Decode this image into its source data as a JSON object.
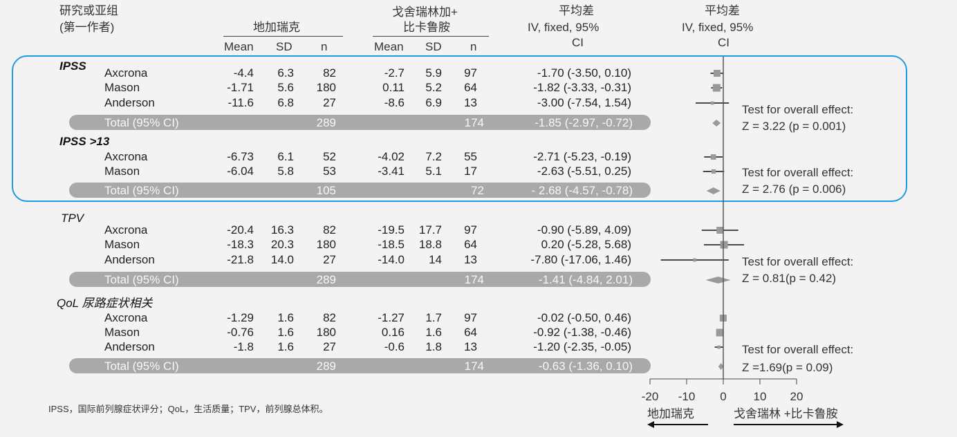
{
  "headers": {
    "study_line1": "研究或亚组",
    "study_line2": "(第一作者)",
    "group1": "地加瑞克",
    "group2_line1": "戈舍瑞林加+",
    "group2_line2": "比卡鲁胺",
    "md_line1": "平均差",
    "md_line2": "IV, fixed, 95%",
    "md_line3": "CI",
    "plot_line1": "平均差",
    "plot_line2": "IV, fixed, 95%",
    "plot_line3": "CI",
    "mean": "Mean",
    "sd": "SD",
    "n": "n"
  },
  "chart_data": {
    "type": "forest",
    "xlim": [
      -20,
      20
    ],
    "xticks": [
      "-20",
      "-10",
      "0",
      "10",
      "20"
    ],
    "x_left_label": "地加瑞克",
    "x_right_label": "戈舍瑞林 +比卡鲁胺",
    "subgroups": [
      {
        "name": "IPSS",
        "studies": [
          {
            "study": "Axcrona",
            "m1": "-4.4",
            "sd1": "6.3",
            "n1": "82",
            "m2": "-2.7",
            "sd2": "5.9",
            "n2": "97",
            "ci_text": "-1.70 (-3.50, 0.10)",
            "md": -1.7,
            "lo": -3.5,
            "hi": 0.1
          },
          {
            "study": "Mason",
            "m1": "-1.71",
            "sd1": "5.6",
            "n1": "180",
            "m2": "0.11",
            "sd2": "5.2",
            "n2": "64",
            "ci_text": "-1.82 (-3.33, -0.31)",
            "md": -1.82,
            "lo": -3.33,
            "hi": -0.31
          },
          {
            "study": "Anderson",
            "m1": "-11.6",
            "sd1": "6.8",
            "n1": "27",
            "m2": "-8.6",
            "sd2": "6.9",
            "n2": "13",
            "ci_text": "-3.00 (-7.54, 1.54)",
            "md": -3.0,
            "lo": -7.54,
            "hi": 1.54
          }
        ],
        "total": {
          "label": "Total (95% CI)",
          "n1": "289",
          "n2": "174",
          "ci_text": "-1.85 (-2.97, -0.72)",
          "md": -1.85,
          "lo": -2.97,
          "hi": -0.72
        },
        "test_line1": "Test for overall effect:",
        "test_line2": "Z = 3.22 (p = 0.001)"
      },
      {
        "name": "IPSS >13",
        "studies": [
          {
            "study": "Axcrona",
            "m1": "-6.73",
            "sd1": "6.1",
            "n1": "52",
            "m2": "-4.02",
            "sd2": "7.2",
            "n2": "55",
            "ci_text": "-2.71 (-5.23, -0.19)",
            "md": -2.71,
            "lo": -5.23,
            "hi": -0.19
          },
          {
            "study": "Mason",
            "m1": "-6.04",
            "sd1": "5.8",
            "n1": "53",
            "m2": "-3.41",
            "sd2": "5.1",
            "n2": "17",
            "ci_text": "-2.63 (-5.51, 0.25)",
            "md": -2.63,
            "lo": -5.51,
            "hi": 0.25
          }
        ],
        "total": {
          "label": "Total (95% CI)",
          "n1": "105",
          "n2": "72",
          "ci_text": "- 2.68 (-4.57, -0.78)",
          "md": -2.68,
          "lo": -4.57,
          "hi": -0.78
        },
        "test_line1": "Test for overall effect:",
        "test_line2": "Z = 2.76 (p = 0.006)"
      },
      {
        "name": "TPV",
        "studies": [
          {
            "study": "Axcrona",
            "m1": "-20.4",
            "sd1": "16.3",
            "n1": "82",
            "m2": "-19.5",
            "sd2": "17.7",
            "n2": "97",
            "ci_text": "-0.90 (-5.89, 4.09)",
            "md": -0.9,
            "lo": -5.89,
            "hi": 4.09
          },
          {
            "study": "Mason",
            "m1": "-18.3",
            "sd1": "20.3",
            "n1": "180",
            "m2": "-18.5",
            "sd2": "18.8",
            "n2": "64",
            "ci_text": "0.20 (-5.28, 5.68)",
            "md": 0.2,
            "lo": -5.28,
            "hi": 5.68
          },
          {
            "study": "Anderson",
            "m1": "-21.8",
            "sd1": "14.0",
            "n1": "27",
            "m2": "-14.0",
            "sd2": "14",
            "n2": "13",
            "ci_text": "-7.80 (-17.06, 1.46)",
            "md": -7.8,
            "lo": -17.06,
            "hi": 1.46
          }
        ],
        "total": {
          "label": "Total (95% CI)",
          "n1": "289",
          "n2": "174",
          "ci_text": "-1.41 (-4.84, 2.01)",
          "md": -1.41,
          "lo": -4.84,
          "hi": 2.01
        },
        "test_line1": "Test for overall effect:",
        "test_line2": "Z = 0.81(p = 0.42)"
      },
      {
        "name": "QoL 尿路症状相关",
        "studies": [
          {
            "study": "Axcrona",
            "m1": "-1.29",
            "sd1": "1.6",
            "n1": "82",
            "m2": "-1.27",
            "sd2": "1.7",
            "n2": "97",
            "ci_text": "-0.02 (-0.50, 0.46)",
            "md": -0.02,
            "lo": -0.5,
            "hi": 0.46
          },
          {
            "study": "Mason",
            "m1": "-0.76",
            "sd1": "1.6",
            "n1": "180",
            "m2": "0.16",
            "sd2": "1.6",
            "n2": "64",
            "ci_text": "-0.92 (-1.38, -0.46)",
            "md": -0.92,
            "lo": -1.38,
            "hi": -0.46
          },
          {
            "study": "Anderson",
            "m1": "-1.8",
            "sd1": "1.6",
            "n1": "27",
            "m2": "-0.6",
            "sd2": "1.8",
            "n2": "13",
            "ci_text": "-1.20 (-2.35, -0.05)",
            "md": -1.2,
            "lo": -2.35,
            "hi": -0.05
          }
        ],
        "total": {
          "label": "Total (95% CI)",
          "n1": "289",
          "n2": "174",
          "ci_text": "-0.63 (-1.36, 0.10)",
          "md": -0.63,
          "lo": -1.36,
          "hi": 0.1
        },
        "test_line1": "Test for overall effect:",
        "test_line2": "Z =1.69(p = 0.09)"
      }
    ]
  },
  "footnote": "IPSS，国际前列腺症状评分；QoL，生活质量；TPV，前列腺总体积。",
  "colors": {
    "highlight_box": "#1e9be0",
    "total_bar": "#a9a9a9",
    "marker": "#999999"
  }
}
